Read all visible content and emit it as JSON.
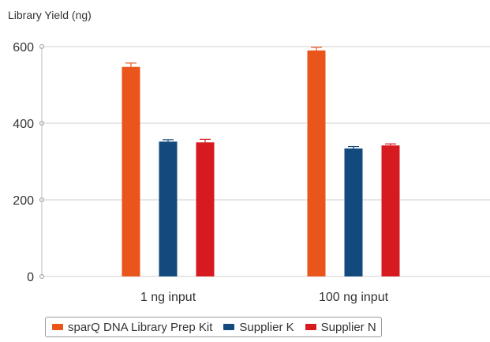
{
  "chart_data": {
    "type": "bar",
    "title": "",
    "ylabel": "Library Yield (ng)",
    "xlabel": "",
    "ylim": [
      0,
      600
    ],
    "yticks": [
      0,
      200,
      400,
      600
    ],
    "ytick_labels": [
      "0",
      "200",
      "400",
      "600"
    ],
    "grid": true,
    "legend_position": "bottom",
    "categories": [
      "1 ng input",
      "100 ng input"
    ],
    "series": [
      {
        "name": "sparQ DNA Library Prep Kit",
        "color": "#e9551b",
        "values": [
          547,
          590
        ],
        "errors": [
          10,
          8
        ]
      },
      {
        "name": "Supplier K",
        "color": "#134a7d",
        "values": [
          352,
          334
        ],
        "errors": [
          5,
          5
        ]
      },
      {
        "name": "Supplier N",
        "color": "#d71920",
        "values": [
          350,
          342
        ],
        "errors": [
          8,
          4
        ]
      }
    ]
  }
}
